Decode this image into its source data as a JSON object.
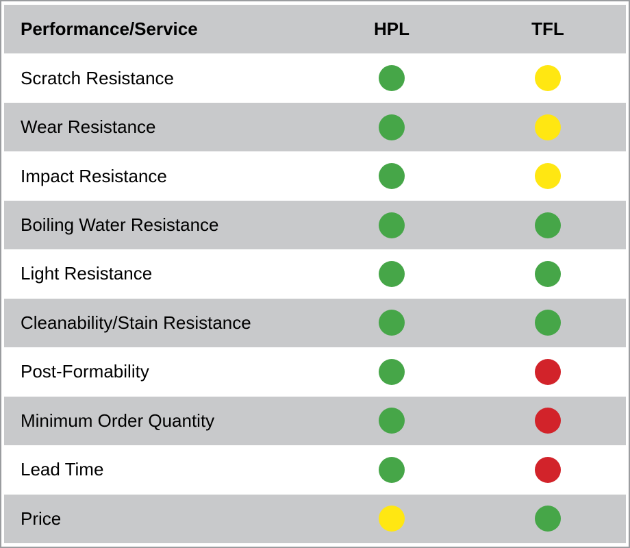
{
  "chart_data": {
    "type": "table",
    "columns": [
      "Performance/Service",
      "HPL",
      "TFL"
    ],
    "rows": [
      {
        "label": "Scratch Resistance",
        "HPL": "green",
        "TFL": "yellow"
      },
      {
        "label": "Wear Resistance",
        "HPL": "green",
        "TFL": "yellow"
      },
      {
        "label": "Impact Resistance",
        "HPL": "green",
        "TFL": "yellow"
      },
      {
        "label": "Boiling Water Resistance",
        "HPL": "green",
        "TFL": "green"
      },
      {
        "label": "Light Resistance",
        "HPL": "green",
        "TFL": "green"
      },
      {
        "label": "Cleanability/Stain Resistance",
        "HPL": "green",
        "TFL": "green"
      },
      {
        "label": "Post-Formability",
        "HPL": "green",
        "TFL": "red"
      },
      {
        "label": "Minimum Order Quantity",
        "HPL": "green",
        "TFL": "red"
      },
      {
        "label": "Lead Time",
        "HPL": "green",
        "TFL": "red"
      },
      {
        "label": "Price",
        "HPL": "yellow",
        "TFL": "green"
      }
    ],
    "rating_colors": {
      "green": "#46a648",
      "yellow": "#ffe712",
      "red": "#d2232a"
    },
    "layout": {
      "header_bg": "#c8c9cb",
      "alt_row_bg": "#c8c9cb",
      "row_bg": "#ffffff",
      "border_color": "#9a9c9f",
      "text_color": "#000000",
      "legend_position": "none",
      "grid": false
    }
  }
}
